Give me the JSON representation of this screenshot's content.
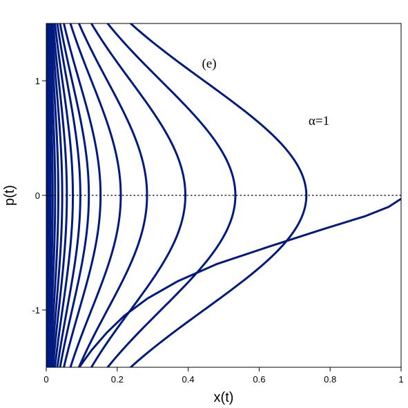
{
  "chart_data": {
    "type": "line",
    "xlabel": "x(t)",
    "ylabel": "p(t)",
    "xlim": [
      0,
      1
    ],
    "ylim": [
      -1.5,
      1.5
    ],
    "x_ticks": [
      0,
      0.2,
      0.4,
      0.6,
      0.8,
      1
    ],
    "x_tick_labels": [
      "0",
      "0.2",
      "0.4",
      "0.6",
      "0.8",
      "1"
    ],
    "y_ticks": [
      -1,
      0,
      1
    ],
    "y_tick_labels": [
      "-1",
      "0",
      "1"
    ],
    "annotations": {
      "panel": "(e)",
      "param": "α=1"
    },
    "reference_line": {
      "y": 0,
      "style": "dotted"
    },
    "curve_color": "#001a80",
    "curve_model": "x = x0 * exp(-p^2 / 2)",
    "series_x0": [
      0.003,
      0.007,
      0.012,
      0.018,
      0.025,
      0.034,
      0.045,
      0.058,
      0.075,
      0.096,
      0.12,
      0.153,
      0.21,
      0.284,
      0.392,
      0.533,
      0.733
    ],
    "open_curve": {
      "points": [
        [
          0.093,
          -1.5
        ],
        [
          0.128,
          -1.35
        ],
        [
          0.17,
          -1.2
        ],
        [
          0.22,
          -1.05
        ],
        [
          0.285,
          -0.9
        ],
        [
          0.37,
          -0.75
        ],
        [
          0.48,
          -0.6
        ],
        [
          0.625,
          -0.45
        ],
        [
          0.775,
          -0.3
        ],
        [
          0.9,
          -0.18
        ],
        [
          0.965,
          -0.1
        ],
        [
          0.99,
          -0.05
        ],
        [
          1.0,
          -0.03
        ]
      ]
    }
  }
}
